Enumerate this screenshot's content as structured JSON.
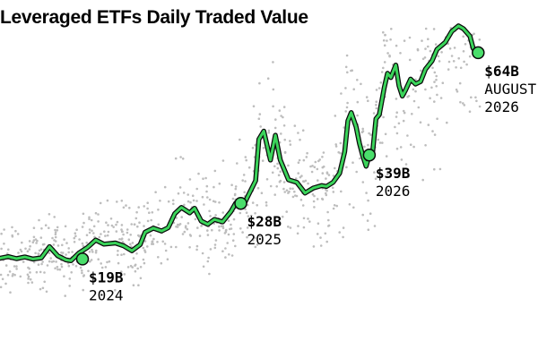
{
  "title": "Leveraged ETFs Daily Traded Value",
  "colors": {
    "line": "#3ad45a",
    "line_outline": "#0a0a0a",
    "marker": "#4ade6b",
    "scatter": "#bdbdbd",
    "text": "#000000"
  },
  "chart_data": {
    "type": "line",
    "title": "Leveraged ETFs Daily Traded Value",
    "xlabel": "",
    "ylabel": "",
    "unit": "$B",
    "x_start": 2023.7,
    "x_end": 2026.62,
    "ylim": [
      0,
      72
    ],
    "grid": false,
    "legend": "none",
    "series": [
      {
        "name": "",
        "values": [
          [
            2023.7,
            14.2
          ],
          [
            2023.75,
            14.6
          ],
          [
            2023.8,
            14.1
          ],
          [
            2023.85,
            14.5
          ],
          [
            2023.9,
            14.0
          ],
          [
            2023.95,
            14.3
          ],
          [
            2024.0,
            17.0
          ],
          [
            2024.05,
            14.8
          ],
          [
            2024.1,
            13.8
          ],
          [
            2024.13,
            13.6
          ],
          [
            2024.18,
            15.5
          ],
          [
            2024.23,
            16.8
          ],
          [
            2024.28,
            18.6
          ],
          [
            2024.33,
            17.6
          ],
          [
            2024.4,
            17.9
          ],
          [
            2024.45,
            17.2
          ],
          [
            2024.5,
            16.0
          ],
          [
            2024.55,
            17.5
          ],
          [
            2024.58,
            20.5
          ],
          [
            2024.63,
            21.5
          ],
          [
            2024.68,
            20.8
          ],
          [
            2024.72,
            21.6
          ],
          [
            2024.76,
            25.0
          ],
          [
            2024.8,
            26.5
          ],
          [
            2024.85,
            25.2
          ],
          [
            2024.88,
            26.3
          ],
          [
            2024.92,
            23.2
          ],
          [
            2024.96,
            22.4
          ],
          [
            2025.0,
            23.6
          ],
          [
            2025.05,
            23.0
          ],
          [
            2025.1,
            25.5
          ],
          [
            2025.13,
            27.6
          ],
          [
            2025.18,
            27.3
          ],
          [
            2025.2,
            29.0
          ],
          [
            2025.25,
            33.0
          ],
          [
            2025.27,
            43.0
          ],
          [
            2025.3,
            45.0
          ],
          [
            2025.34,
            38.0
          ],
          [
            2025.37,
            44.0
          ],
          [
            2025.4,
            38.0
          ],
          [
            2025.45,
            33.2
          ],
          [
            2025.5,
            32.6
          ],
          [
            2025.55,
            30.0
          ],
          [
            2025.6,
            31.2
          ],
          [
            2025.65,
            31.8
          ],
          [
            2025.68,
            31.6
          ],
          [
            2025.72,
            32.6
          ],
          [
            2025.76,
            34.8
          ],
          [
            2025.79,
            40.0
          ],
          [
            2025.81,
            47.5
          ],
          [
            2025.83,
            49.5
          ],
          [
            2025.86,
            46.0
          ],
          [
            2025.88,
            42.0
          ],
          [
            2025.9,
            39.0
          ],
          [
            2025.92,
            36.5
          ],
          [
            2025.94,
            39.2
          ],
          [
            2025.96,
            40.0
          ],
          [
            2025.98,
            48.0
          ],
          [
            2026.0,
            49.0
          ],
          [
            2026.03,
            55.5
          ],
          [
            2026.05,
            59.0
          ],
          [
            2026.07,
            58.0
          ],
          [
            2026.1,
            61.0
          ],
          [
            2026.12,
            56.0
          ],
          [
            2026.14,
            53.5
          ],
          [
            2026.16,
            55.0
          ],
          [
            2026.19,
            57.6
          ],
          [
            2026.22,
            56.4
          ],
          [
            2026.25,
            57.0
          ],
          [
            2026.28,
            60.0
          ],
          [
            2026.32,
            62.0
          ],
          [
            2026.35,
            64.8
          ],
          [
            2026.4,
            66.5
          ],
          [
            2026.44,
            69.2
          ],
          [
            2026.48,
            70.5
          ],
          [
            2026.51,
            69.8
          ],
          [
            2026.55,
            68.0
          ],
          [
            2026.57,
            65.0
          ],
          [
            2026.6,
            64.0
          ]
        ]
      }
    ],
    "callouts": [
      {
        "x": 2024.2,
        "y": 14.0,
        "value": "$19B",
        "label": "2024"
      },
      {
        "x": 2025.16,
        "y": 27.5,
        "value": "$28B",
        "label": "2025"
      },
      {
        "x": 2025.94,
        "y": 39.2,
        "value": "$39B",
        "label": "2026"
      },
      {
        "x": 2026.6,
        "y": 64.0,
        "value": "$64B",
        "label": "AUGUST",
        "label2": "2026"
      }
    ]
  }
}
